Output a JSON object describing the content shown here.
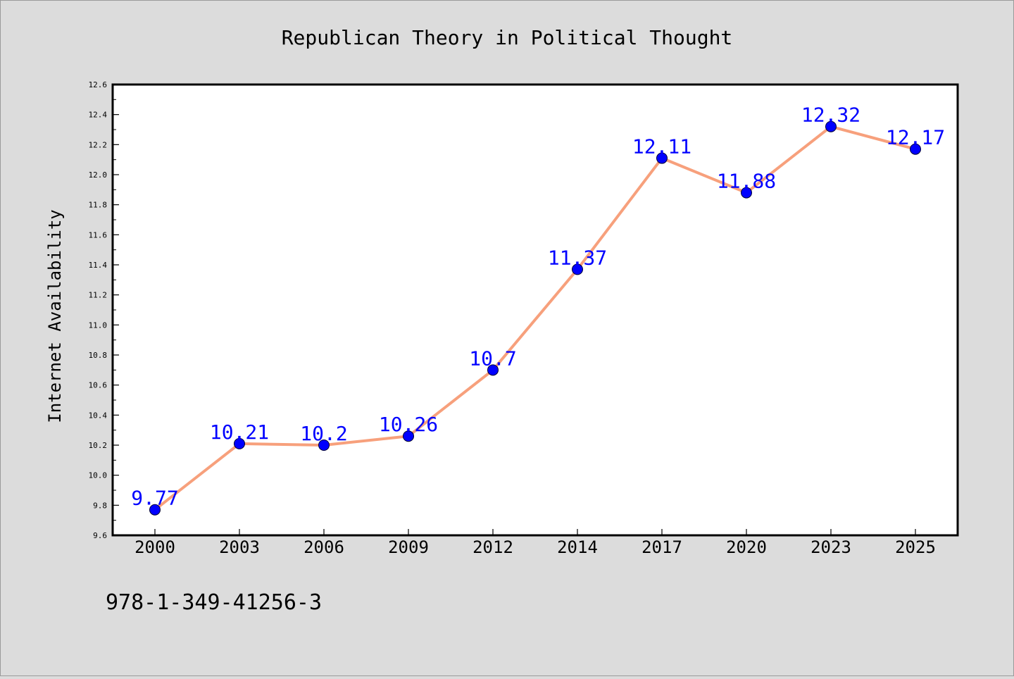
{
  "chart_data": {
    "type": "line",
    "title": "Republican Theory in Political Thought",
    "xlabel": "",
    "ylabel": "Internet Availability",
    "categories": [
      "2000",
      "2003",
      "2006",
      "2009",
      "2012",
      "2014",
      "2017",
      "2020",
      "2023",
      "2025"
    ],
    "series": [
      {
        "values": [
          9.77,
          10.21,
          10.2,
          10.26,
          10.7,
          11.37,
          12.11,
          11.88,
          12.32,
          12.17
        ],
        "labels": [
          "9.77",
          "10.21",
          "10.2",
          "10.26",
          "10.7",
          "11.37",
          "12.11",
          "11.88",
          "12.32",
          "12.17"
        ],
        "line_color": "#f7a07c",
        "marker_color": "#0000ff"
      }
    ],
    "ylim": [
      9.6,
      12.6
    ],
    "yticks": [
      "9.6",
      "9.8",
      "10.0",
      "10.2",
      "10.4",
      "10.6",
      "10.8",
      "11.0",
      "11.2",
      "11.4",
      "11.6",
      "11.8",
      "12.0",
      "12.2",
      "12.4",
      "12.6"
    ],
    "grid": false,
    "label_color": "#0000ff",
    "background_color": "#dcdcdc",
    "plot_background": "#ffffff"
  },
  "footer": {
    "isbn": "978-1-349-41256-3"
  }
}
